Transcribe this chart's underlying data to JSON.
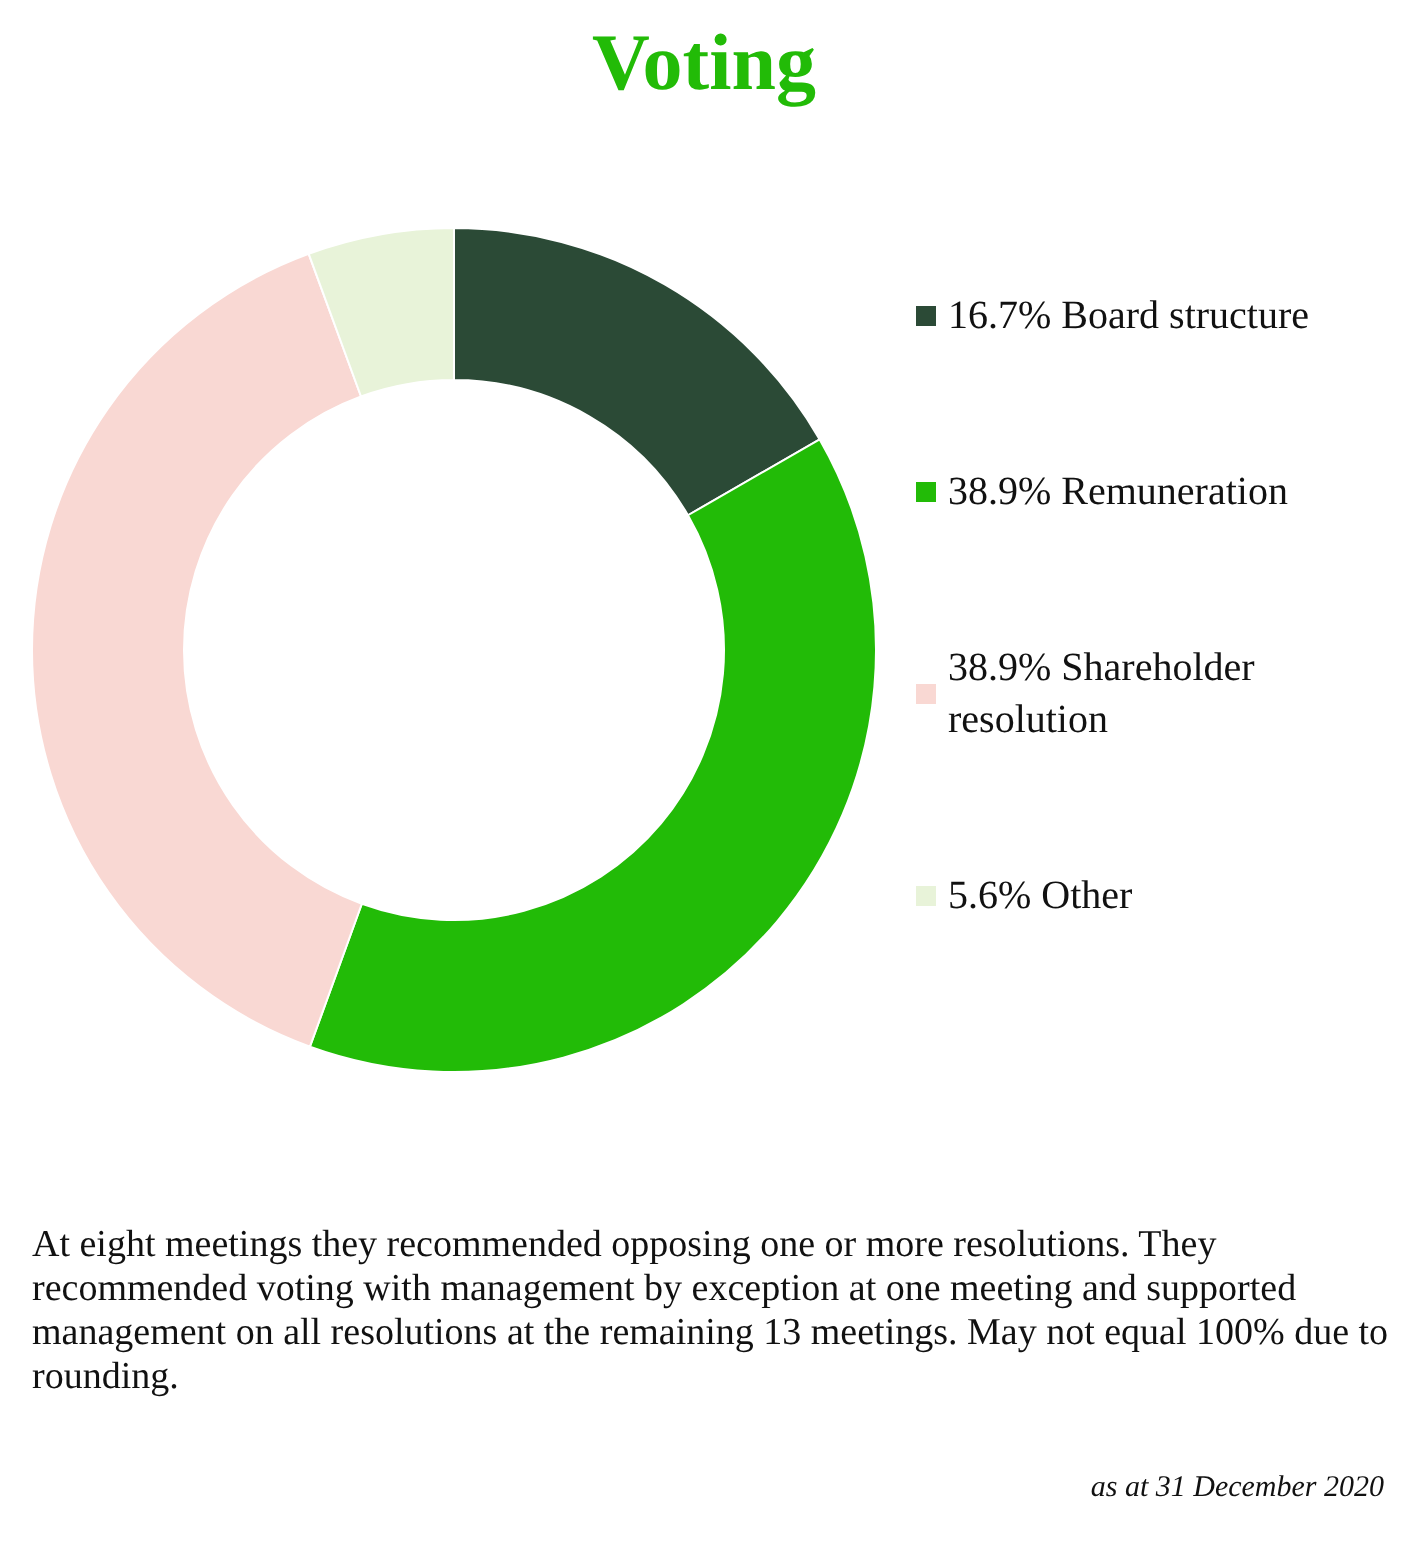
{
  "chart_data": {
    "type": "donut",
    "title": "Voting",
    "categories": [
      "Board structure",
      "Remuneration",
      "Shareholder resolution",
      "Other"
    ],
    "values": [
      16.7,
      38.9,
      38.9,
      5.6
    ],
    "value_labels": [
      "16.7%",
      "38.9%",
      "38.9%",
      "5.6%"
    ],
    "colors": [
      "#2b4a36",
      "#22bb07",
      "#f9d8d3",
      "#e8f3d9"
    ],
    "legend": "right",
    "annotations": [
      "At eight meetings they recommended opposing one or more resolutions. They recommended voting with management by exception at one meeting and supported management on all resolutions at the remaining 13 meetings. May not equal 100% due to rounding.",
      "as at 31 December 2020"
    ]
  }
}
